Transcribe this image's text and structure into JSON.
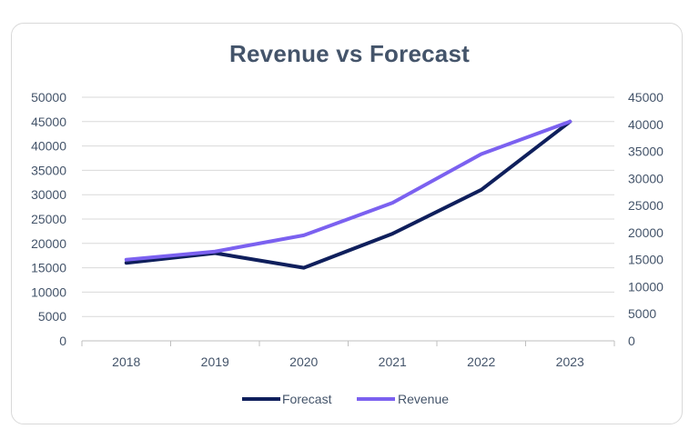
{
  "chart_data": {
    "type": "line",
    "title": "Revenue vs Forecast",
    "categories": [
      "2018",
      "2019",
      "2020",
      "2021",
      "2022",
      "2023"
    ],
    "series": [
      {
        "name": "Forecast",
        "axis": "left",
        "color": "#0f1f5c",
        "values": [
          16000,
          18000,
          15000,
          22000,
          31000,
          45000
        ]
      },
      {
        "name": "Revenue",
        "axis": "right",
        "color": "#7b61f0",
        "values": [
          15000,
          16500,
          19500,
          25500,
          34500,
          40500
        ]
      }
    ],
    "y_left": {
      "min": 0,
      "max": 50000,
      "step": 5000,
      "ticks": [
        "0",
        "5000",
        "10000",
        "15000",
        "20000",
        "25000",
        "30000",
        "35000",
        "40000",
        "45000",
        "50000"
      ]
    },
    "y_right": {
      "min": 0,
      "max": 45000,
      "step": 5000,
      "ticks": [
        "0",
        "5000",
        "10000",
        "15000",
        "20000",
        "25000",
        "30000",
        "35000",
        "40000",
        "45000"
      ]
    },
    "grid": true,
    "legend": "bottom",
    "colors": {
      "title": "#44546a",
      "gridline": "#d9d9d9",
      "axis": "#bfbfbf",
      "text": "#44546a"
    }
  }
}
